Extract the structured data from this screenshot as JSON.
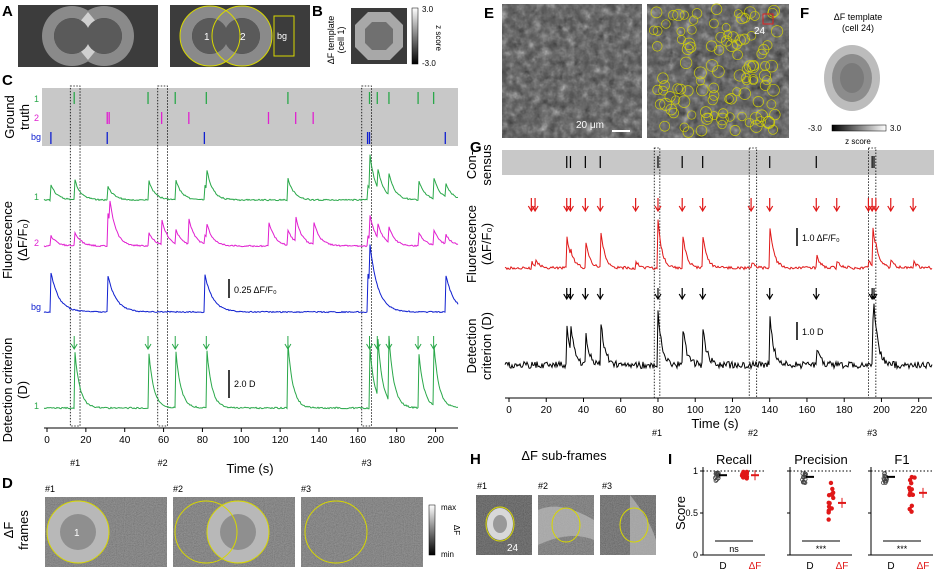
{
  "panel_letters": [
    "A",
    "B",
    "C",
    "D",
    "E",
    "F",
    "G",
    "H",
    "I"
  ],
  "A": {
    "roi1": "1",
    "roi2": "2",
    "bg": "bg"
  },
  "B": {
    "title_line1": "ΔF template",
    "title_line2": "(cell 1)",
    "scale_top": "3.0",
    "scale_bottom": "-3.0",
    "scale_label": "z score"
  },
  "C": {
    "ground_truth_label": [
      "Ground",
      "truth"
    ],
    "fluorescence_label": [
      "Fluorescence",
      "(ΔF/F₀)"
    ],
    "detection_label": [
      "Detection criterion",
      "(D)"
    ],
    "trace_labels": [
      "1",
      "2",
      "bg"
    ],
    "det_trace_label": "1",
    "scale_fluor": "0.25 ΔF/F₀",
    "scale_det": "2.0 D",
    "xlabel": "Time (s)",
    "xticks": [
      "0",
      "20",
      "40",
      "60",
      "80",
      "100",
      "120",
      "140",
      "160",
      "180",
      "200"
    ],
    "events": [
      "#1",
      "#2",
      "#3"
    ],
    "colors": {
      "roi1": "#2aa84a",
      "roi2": "#e020d0",
      "bg": "#1020d0"
    }
  },
  "D": {
    "row_label": [
      "ΔF",
      "frames"
    ],
    "frames": [
      "#1",
      "#2",
      "#3"
    ],
    "roi1": "1",
    "scale_max": "max",
    "scale_min": "min",
    "scale_label": "ΔF"
  },
  "E": {
    "scalebar": "20 μm",
    "cell": "24"
  },
  "F": {
    "title_line1": "ΔF template",
    "title_line2": "(cell 24)",
    "scale_left": "-3.0",
    "scale_right": "3.0",
    "scale_label": "z score"
  },
  "G": {
    "consensus_label": [
      "Con-",
      "sensus"
    ],
    "fluorescence_label": [
      "Fluorescence",
      "(ΔF/F₀)"
    ],
    "detection_label": [
      "Detection",
      "criterion (D)"
    ],
    "scale_fluor": "1.0 ΔF/F₀",
    "scale_det": "1.0 D",
    "xlabel": "Time (s)",
    "xticks": [
      "0",
      "20",
      "40",
      "60",
      "80",
      "100",
      "120",
      "140",
      "160",
      "180",
      "200",
      "220"
    ],
    "events": [
      "#1",
      "#2",
      "#3"
    ],
    "colors": {
      "fluor": "#e01818",
      "det": "#000000"
    }
  },
  "H": {
    "title": "ΔF sub-frames",
    "frames": [
      "#1",
      "#2",
      "#3"
    ],
    "cell": "24"
  },
  "I": {
    "ylabel": "Score",
    "yticks": [
      "0",
      "0.5",
      "1"
    ],
    "groups": [
      "D",
      "ΔF"
    ],
    "colors": {
      "D": "#444444",
      "ΔF": "#e01818"
    },
    "panels": [
      {
        "title": "Recall",
        "sig": "ns",
        "mean_D": 0.95,
        "mean_dF": 0.95
      },
      {
        "title": "Precision",
        "sig": "***",
        "mean_D": 0.93,
        "mean_dF": 0.62
      },
      {
        "title": "F1",
        "sig": "***",
        "mean_D": 0.93,
        "mean_dF": 0.74
      }
    ]
  }
}
